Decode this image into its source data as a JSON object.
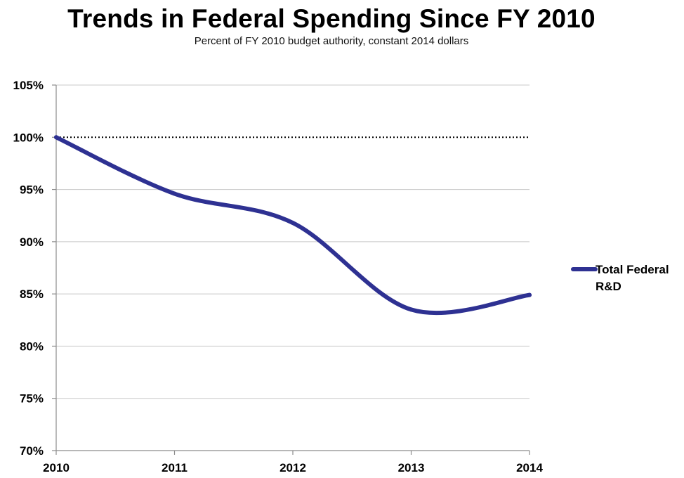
{
  "title": "Trends in Federal Spending Since FY 2010",
  "subtitle": "Percent of FY 2010 budget authority, constant 2014 dollars",
  "chart_data": {
    "type": "line",
    "title": "Trends in Federal Spending Since FY 2010",
    "subtitle": "Percent of FY 2010 budget authority, constant 2014 dollars",
    "xlabel": "",
    "ylabel": "",
    "x": [
      2010,
      2011,
      2012,
      2013,
      2014
    ],
    "x_tick_labels": [
      "2010",
      "2011",
      "2012",
      "2013",
      "2014"
    ],
    "ylim": [
      70,
      105
    ],
    "y_ticks": [
      70,
      75,
      80,
      85,
      90,
      95,
      100,
      105
    ],
    "y_tick_labels": [
      "70%",
      "75%",
      "80%",
      "85%",
      "90%",
      "95%",
      "100%",
      "105%"
    ],
    "series": [
      {
        "name": "Total Federal R&D",
        "values": [
          100,
          94.6,
          91.8,
          83.5,
          84.9
        ],
        "color": "#2e3192"
      }
    ],
    "reference_line": {
      "value": 100,
      "style": "dotted"
    },
    "grid": true,
    "legend": {
      "position": "right",
      "lines": [
        "Total Federal",
        "R&D"
      ]
    }
  }
}
